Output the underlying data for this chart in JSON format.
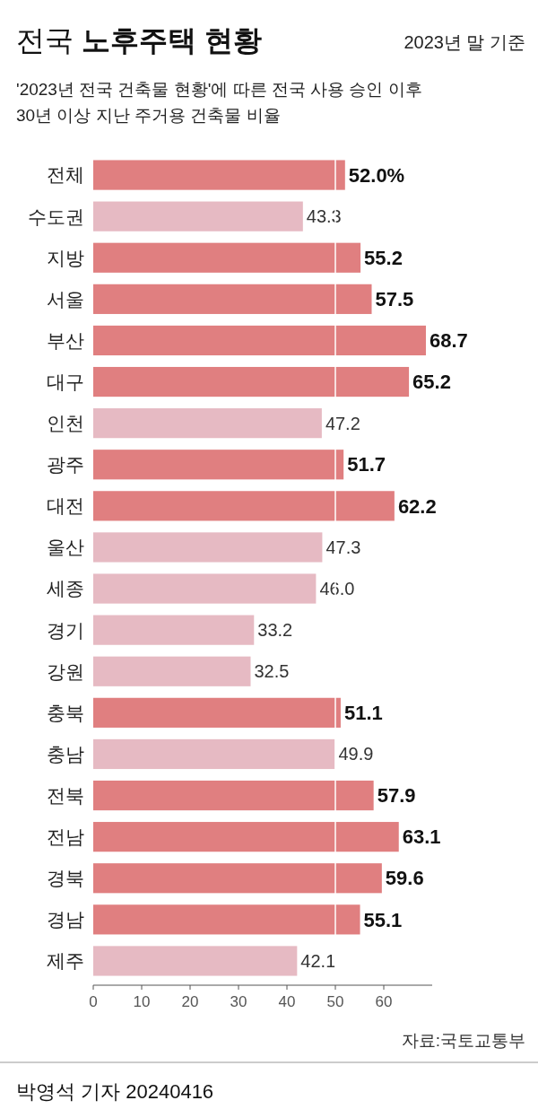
{
  "chart_data": {
    "type": "bar",
    "orientation": "horizontal",
    "title": "전국 노후주택 현황",
    "subtitle": "'2023년 전국 건축물 현황'에 따른 전국 사용 승인 이후\n30년 이상 지난 주거용 건축물 비율",
    "categories": [
      "전체",
      "수도권",
      "지방",
      "서울",
      "부산",
      "대구",
      "인천",
      "광주",
      "대전",
      "울산",
      "세종",
      "경기",
      "강원",
      "충북",
      "충남",
      "전북",
      "전남",
      "경북",
      "경남",
      "제주"
    ],
    "values": [
      52.0,
      43.3,
      55.2,
      57.5,
      68.7,
      65.2,
      47.2,
      51.7,
      62.2,
      47.3,
      46.0,
      33.2,
      32.5,
      51.1,
      49.9,
      57.9,
      63.1,
      59.6,
      55.1,
      42.1
    ],
    "colors": [
      "#e07f80",
      "#e6bac3",
      "#e07f80",
      "#e07f80",
      "#e07f80",
      "#e07f80",
      "#e6bac3",
      "#e07f80",
      "#e07f80",
      "#e6bac3",
      "#e6bac3",
      "#e6bac3",
      "#e6bac3",
      "#e07f80",
      "#e6bac3",
      "#e07f80",
      "#e07f80",
      "#e07f80",
      "#e07f80",
      "#e6bac3"
    ],
    "value_labels": [
      "52.0%",
      "43.3",
      "55.2",
      "57.5",
      "68.7",
      "65.2",
      "47.2",
      "51.7",
      "62.2",
      "47.3",
      "46.0",
      "33.2",
      "32.5",
      "51.1",
      "49.9",
      "57.9",
      "63.1",
      "59.6",
      "55.1",
      "42.1"
    ],
    "xlim": [
      0,
      70
    ],
    "xticks": [
      0,
      10,
      20,
      30,
      40,
      50,
      60
    ],
    "ref_lines": [
      {
        "axis": "x",
        "value": 50,
        "color": "#ffffff"
      }
    ],
    "grid": false,
    "annotations": [
      "2023년 말 기준",
      "자료:국토교통부",
      "박영석 기자 20240416"
    ]
  }
}
